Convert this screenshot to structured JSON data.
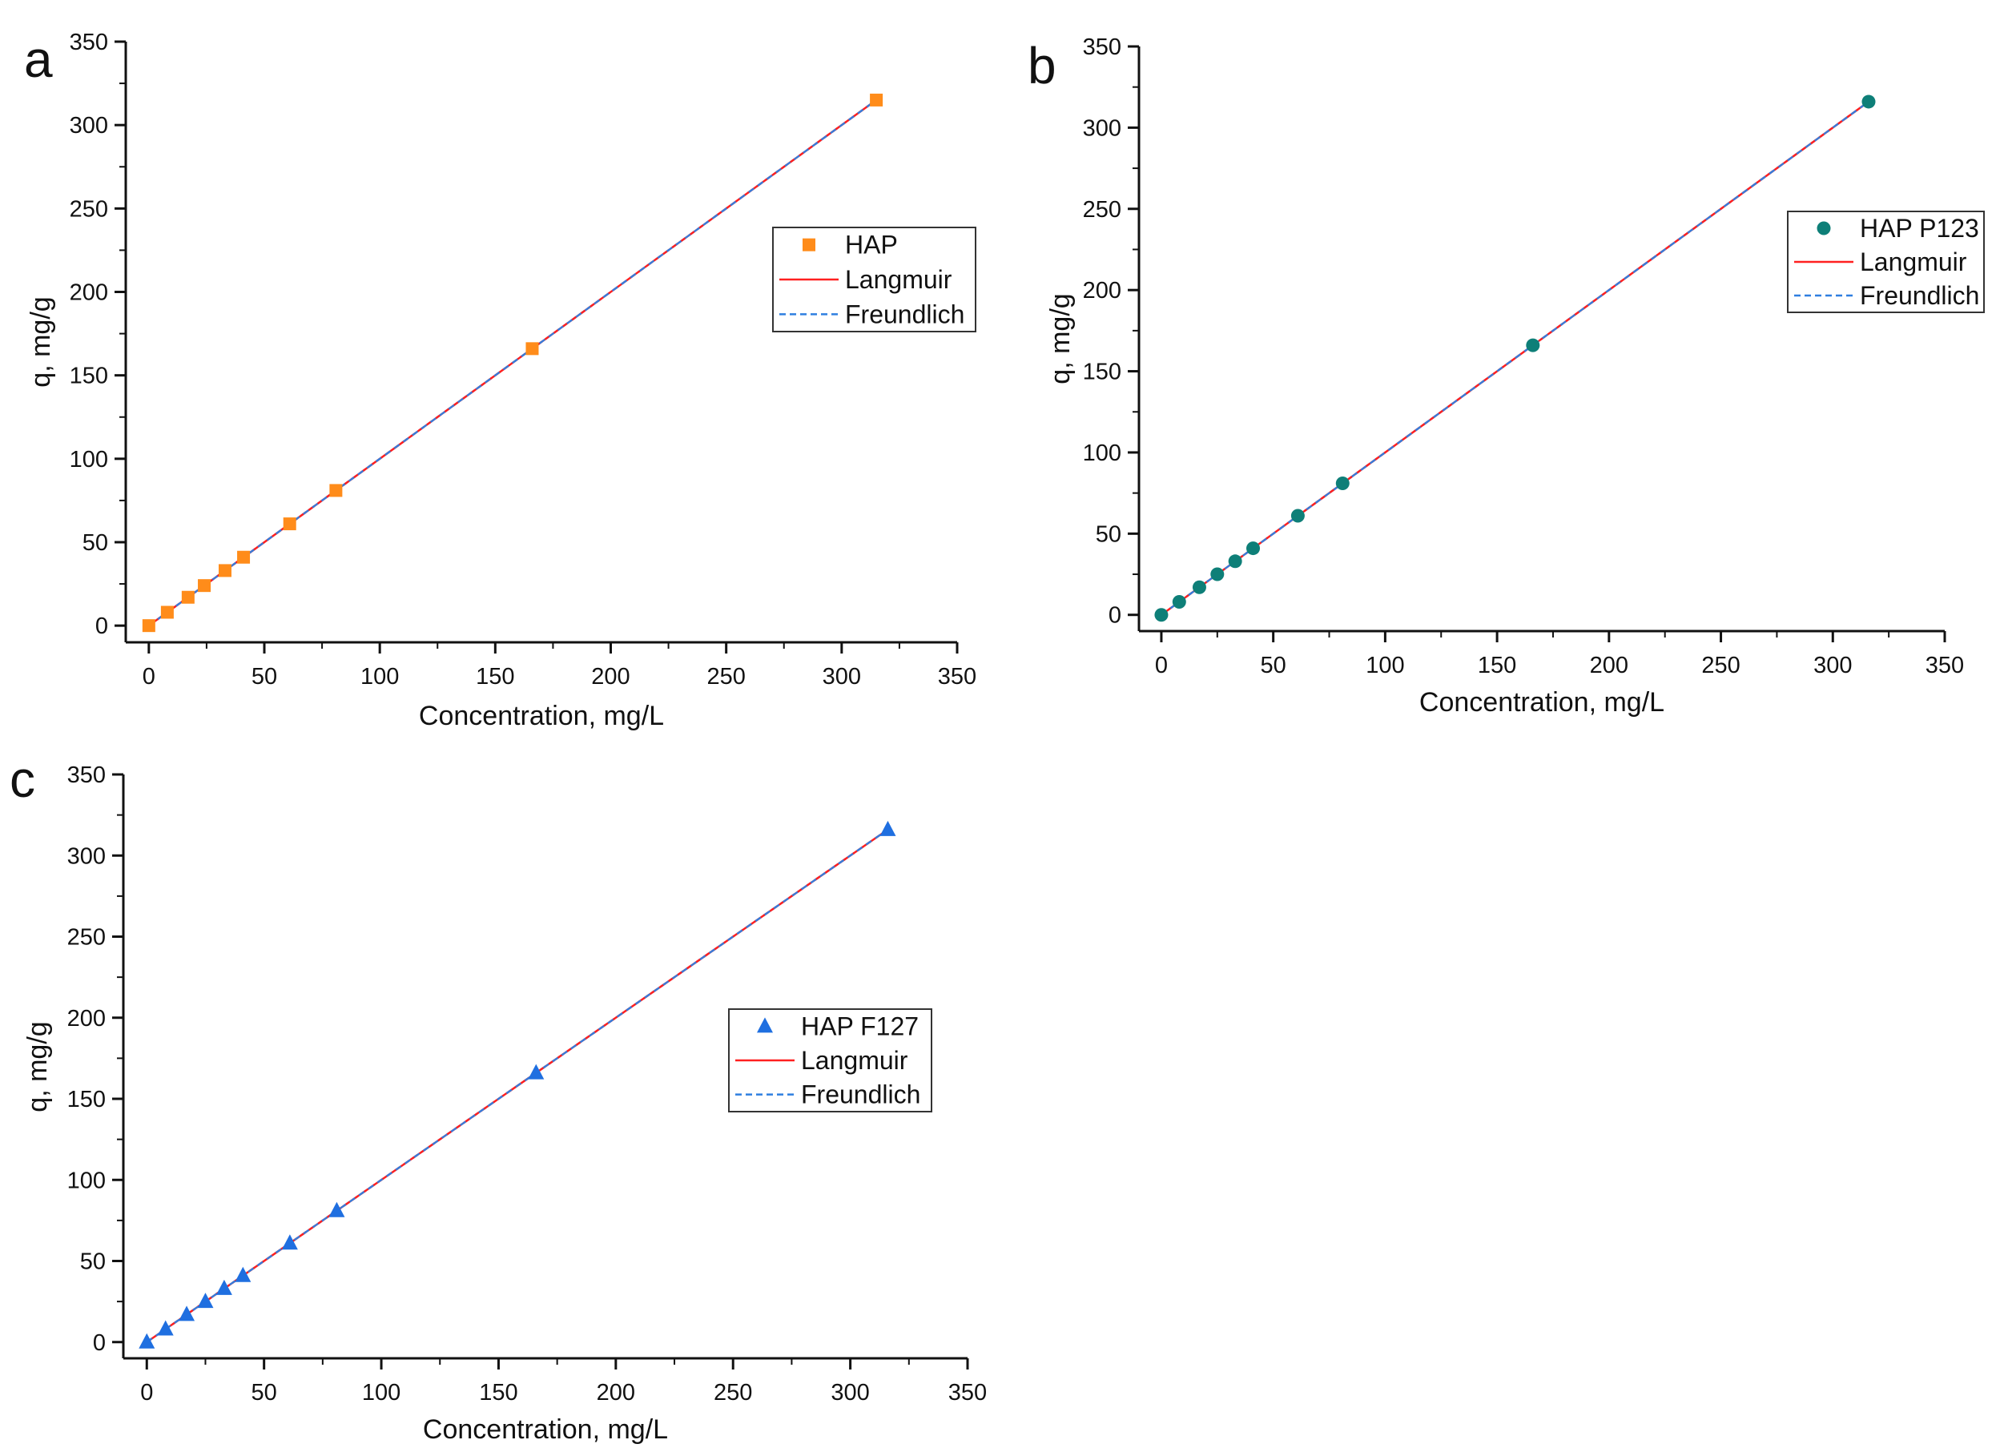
{
  "colors": {
    "langmuir": "#ff2020",
    "freundlich": "#2f7fe0",
    "axis": "#111111"
  },
  "chart_data": [
    {
      "panel_label": "a",
      "type": "scatter",
      "xlabel": "Concentration, mg/L",
      "ylabel": "q, mg/g",
      "xlim": [
        -10,
        350
      ],
      "ylim": [
        -10,
        350
      ],
      "xticks": [
        0,
        50,
        100,
        150,
        200,
        250,
        300,
        350
      ],
      "yticks": [
        0,
        50,
        100,
        150,
        200,
        250,
        300,
        350
      ],
      "legend_position": "center-right",
      "series": [
        {
          "name": "HAP",
          "kind": "points",
          "marker": "square",
          "color": "#ff8c1a",
          "x": [
            0,
            8,
            17,
            24,
            33,
            41,
            61,
            81,
            166,
            315
          ],
          "y": [
            0,
            8,
            17,
            24,
            33,
            41,
            61,
            81,
            166,
            315
          ]
        },
        {
          "name": "Langmuir",
          "kind": "line",
          "style": "solid",
          "color": "#ff2020",
          "x": [
            0,
            315
          ],
          "y": [
            0,
            315
          ]
        },
        {
          "name": "Freundlich",
          "kind": "line",
          "style": "dashed",
          "color": "#2f7fe0",
          "x": [
            0,
            315
          ],
          "y": [
            0,
            315
          ]
        }
      ]
    },
    {
      "panel_label": "b",
      "type": "scatter",
      "xlabel": "Concentration, mg/L",
      "ylabel": "q, mg/g",
      "xlim": [
        -10,
        350
      ],
      "ylim": [
        -10,
        350
      ],
      "xticks": [
        0,
        50,
        100,
        150,
        200,
        250,
        300,
        350
      ],
      "yticks": [
        0,
        50,
        100,
        150,
        200,
        250,
        300,
        350
      ],
      "legend_position": "center-right",
      "series": [
        {
          "name": "HAP P123",
          "kind": "points",
          "marker": "circle",
          "color": "#0e7f78",
          "x": [
            0,
            8,
            17,
            25,
            33,
            41,
            61,
            81,
            166,
            316
          ],
          "y": [
            0,
            8,
            17,
            25,
            33,
            41,
            61,
            81,
            166,
            316
          ]
        },
        {
          "name": "Langmuir",
          "kind": "line",
          "style": "solid",
          "color": "#ff2020",
          "x": [
            0,
            316
          ],
          "y": [
            0,
            316
          ]
        },
        {
          "name": "Freundlich",
          "kind": "line",
          "style": "dashed",
          "color": "#2f7fe0",
          "x": [
            0,
            316
          ],
          "y": [
            0,
            316
          ]
        }
      ]
    },
    {
      "panel_label": "c",
      "type": "scatter",
      "xlabel": "Concentration, mg/L",
      "ylabel": "q, mg/g",
      "xlim": [
        -10,
        350
      ],
      "ylim": [
        -10,
        350
      ],
      "xticks": [
        0,
        50,
        100,
        150,
        200,
        250,
        300,
        350
      ],
      "yticks": [
        0,
        50,
        100,
        150,
        200,
        250,
        300,
        350
      ],
      "legend_position": "center-right",
      "series": [
        {
          "name": "HAP F127",
          "kind": "points",
          "marker": "triangle",
          "color": "#1f6fe0",
          "x": [
            0,
            8,
            17,
            25,
            33,
            41,
            61,
            81,
            166,
            316
          ],
          "y": [
            0,
            8,
            17,
            25,
            33,
            41,
            61,
            81,
            166,
            316
          ]
        },
        {
          "name": "Langmuir",
          "kind": "line",
          "style": "solid",
          "color": "#ff2020",
          "x": [
            0,
            316
          ],
          "y": [
            0,
            316
          ]
        },
        {
          "name": "Freundlich",
          "kind": "line",
          "style": "dashed",
          "color": "#2f7fe0",
          "x": [
            0,
            316
          ],
          "y": [
            0,
            316
          ]
        }
      ]
    }
  ]
}
